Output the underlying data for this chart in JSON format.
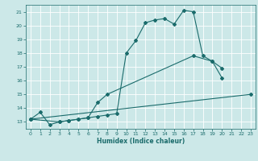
{
  "xlabel": "Humidex (Indice chaleur)",
  "bg_color": "#cce8e8",
  "grid_color": "#ffffff",
  "line_color": "#1a6b6b",
  "xlim": [
    -0.5,
    23.5
  ],
  "ylim": [
    12.5,
    21.5
  ],
  "yticks": [
    13,
    14,
    15,
    16,
    17,
    18,
    19,
    20,
    21
  ],
  "xticks": [
    0,
    1,
    2,
    3,
    4,
    5,
    6,
    7,
    8,
    9,
    10,
    11,
    12,
    13,
    14,
    15,
    16,
    17,
    18,
    19,
    20,
    21,
    22,
    23
  ],
  "curve1": {
    "x": [
      0,
      1,
      2,
      3,
      4,
      5,
      6,
      7,
      8,
      9,
      10,
      11,
      12,
      13,
      14,
      15,
      16,
      17,
      18,
      19,
      20
    ],
    "y": [
      13.2,
      13.7,
      12.8,
      13.0,
      13.1,
      13.2,
      13.3,
      13.4,
      13.5,
      13.6,
      18.0,
      18.9,
      20.2,
      20.4,
      20.5,
      20.1,
      21.1,
      21.0,
      17.8,
      17.4,
      16.9
    ]
  },
  "curve2": {
    "x": [
      0,
      3,
      4,
      5,
      6,
      7,
      8,
      17,
      19,
      20
    ],
    "y": [
      13.2,
      13.0,
      13.1,
      13.2,
      13.3,
      14.4,
      15.0,
      17.8,
      17.4,
      16.2
    ]
  },
  "curve3": {
    "x": [
      0,
      23
    ],
    "y": [
      13.2,
      15.0
    ]
  },
  "figsize": [
    3.2,
    2.0
  ],
  "dpi": 100
}
